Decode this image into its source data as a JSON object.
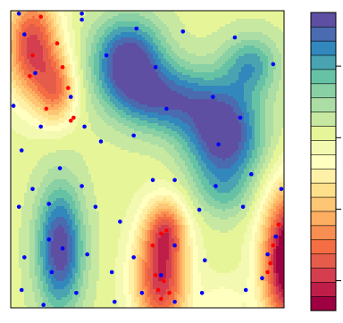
{
  "chart_data": {
    "type": "heatmap",
    "title": "",
    "xlabel": "",
    "ylabel": "",
    "xlim": [
      0,
      1
    ],
    "ylim": [
      0,
      1
    ],
    "grid": false,
    "legend": "right",
    "colorbar": {
      "levels": 20,
      "colors": [
        "#9e0142",
        "#be1e48",
        "#d53e4f",
        "#e55c4a",
        "#f46d43",
        "#f98e52",
        "#fdae61",
        "#fdc675",
        "#fee08b",
        "#fef0a6",
        "#ffffbf",
        "#f3f9b0",
        "#e6f598",
        "#c7e8a0",
        "#abdda4",
        "#89d0a4",
        "#66c2a5",
        "#4aa3b0",
        "#3288bd",
        "#4a6bb0",
        "#5e4fa2"
      ],
      "tick_count": 4
    },
    "points_blue": [
      [
        0.03,
        0.99
      ],
      [
        0.26,
        0.99
      ],
      [
        0.26,
        0.97
      ],
      [
        0.05,
        0.92
      ],
      [
        0.46,
        0.94
      ],
      [
        0.63,
        0.93
      ],
      [
        0.82,
        0.91
      ],
      [
        0.35,
        0.85
      ],
      [
        0.09,
        0.79
      ],
      [
        0.53,
        0.81
      ],
      [
        0.96,
        0.82
      ],
      [
        0.01,
        0.68
      ],
      [
        0.22,
        0.71
      ],
      [
        0.74,
        0.71
      ],
      [
        0.11,
        0.61
      ],
      [
        0.27,
        0.61
      ],
      [
        0.57,
        0.67
      ],
      [
        0.84,
        0.64
      ],
      [
        0.04,
        0.53
      ],
      [
        0.33,
        0.56
      ],
      [
        0.45,
        0.58
      ],
      [
        0.76,
        0.55
      ],
      [
        0.18,
        0.47
      ],
      [
        0.88,
        0.45
      ],
      [
        0.08,
        0.4
      ],
      [
        0.26,
        0.41
      ],
      [
        0.52,
        0.43
      ],
      [
        0.6,
        0.43
      ],
      [
        0.75,
        0.41
      ],
      [
        0.99,
        0.4
      ],
      [
        0.03,
        0.34
      ],
      [
        0.14,
        0.35
      ],
      [
        0.31,
        0.34
      ],
      [
        0.69,
        0.33
      ],
      [
        0.85,
        0.34
      ],
      [
        0.4,
        0.29
      ],
      [
        0.14,
        0.23
      ],
      [
        0.97,
        0.24
      ],
      [
        0.19,
        0.2
      ],
      [
        0.6,
        0.21
      ],
      [
        0.28,
        0.18
      ],
      [
        0.94,
        0.18
      ],
      [
        0.05,
        0.17
      ],
      [
        0.45,
        0.17
      ],
      [
        0.71,
        0.16
      ],
      [
        0.15,
        0.12
      ],
      [
        0.37,
        0.12
      ],
      [
        0.55,
        0.11
      ],
      [
        0.92,
        0.1
      ],
      [
        0.04,
        0.06
      ],
      [
        0.24,
        0.05
      ],
      [
        0.48,
        0.05
      ],
      [
        0.7,
        0.05
      ],
      [
        0.86,
        0.06
      ],
      [
        0.38,
        0.02
      ],
      [
        0.6,
        0.02
      ],
      [
        0.12,
        0.01
      ]
    ],
    "points_red": [
      [
        0.11,
        0.98
      ],
      [
        0.17,
        0.89
      ],
      [
        0.08,
        0.85
      ],
      [
        0.19,
        0.81
      ],
      [
        0.07,
        0.78
      ],
      [
        0.21,
        0.74
      ],
      [
        0.13,
        0.67
      ],
      [
        0.23,
        0.64
      ],
      [
        0.22,
        0.63
      ],
      [
        0.57,
        0.26
      ],
      [
        0.55,
        0.25
      ],
      [
        0.52,
        0.21
      ],
      [
        0.98,
        0.28
      ],
      [
        0.96,
        0.21
      ],
      [
        0.95,
        0.15
      ],
      [
        0.94,
        0.12
      ],
      [
        0.53,
        0.11
      ],
      [
        0.56,
        0.09
      ],
      [
        0.54,
        0.06
      ],
      [
        0.58,
        0.05
      ],
      [
        0.55,
        0.03
      ]
    ]
  }
}
